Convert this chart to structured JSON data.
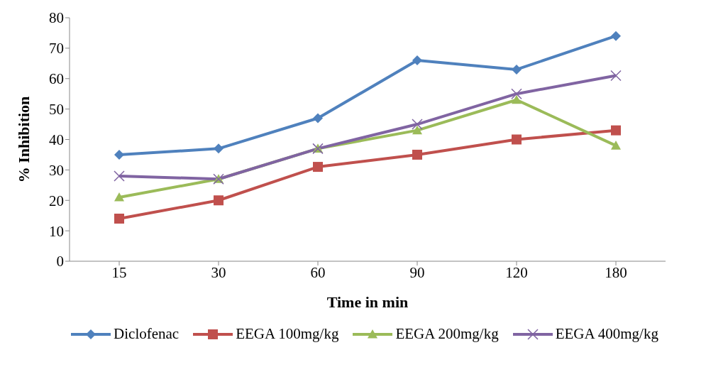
{
  "chart_data": {
    "type": "line",
    "xlabel": "Time in min",
    "ylabel": "% Inhibition",
    "categories": [
      "15",
      "30",
      "60",
      "90",
      "120",
      "180"
    ],
    "series": [
      {
        "name": "Diclofenac",
        "color": "#4f81bd",
        "marker": "diamond",
        "values": [
          35,
          37,
          47,
          66,
          63,
          74
        ]
      },
      {
        "name": "EEGA 100mg/kg",
        "color": "#c0504d",
        "marker": "square",
        "values": [
          14,
          20,
          31,
          35,
          40,
          43
        ]
      },
      {
        "name": "EEGA 200mg/kg",
        "color": "#9bbb59",
        "marker": "triangle",
        "values": [
          21,
          27,
          37,
          43,
          53,
          38
        ]
      },
      {
        "name": "EEGA 400mg/kg",
        "color": "#8064a2",
        "marker": "cross",
        "values": [
          28,
          27,
          37,
          45,
          55,
          61
        ]
      }
    ],
    "ylim": [
      0,
      80
    ],
    "yticks": [
      0,
      10,
      20,
      30,
      40,
      50,
      60,
      70,
      80
    ],
    "grid": false,
    "legend": "bottom",
    "line_style": "solid"
  }
}
